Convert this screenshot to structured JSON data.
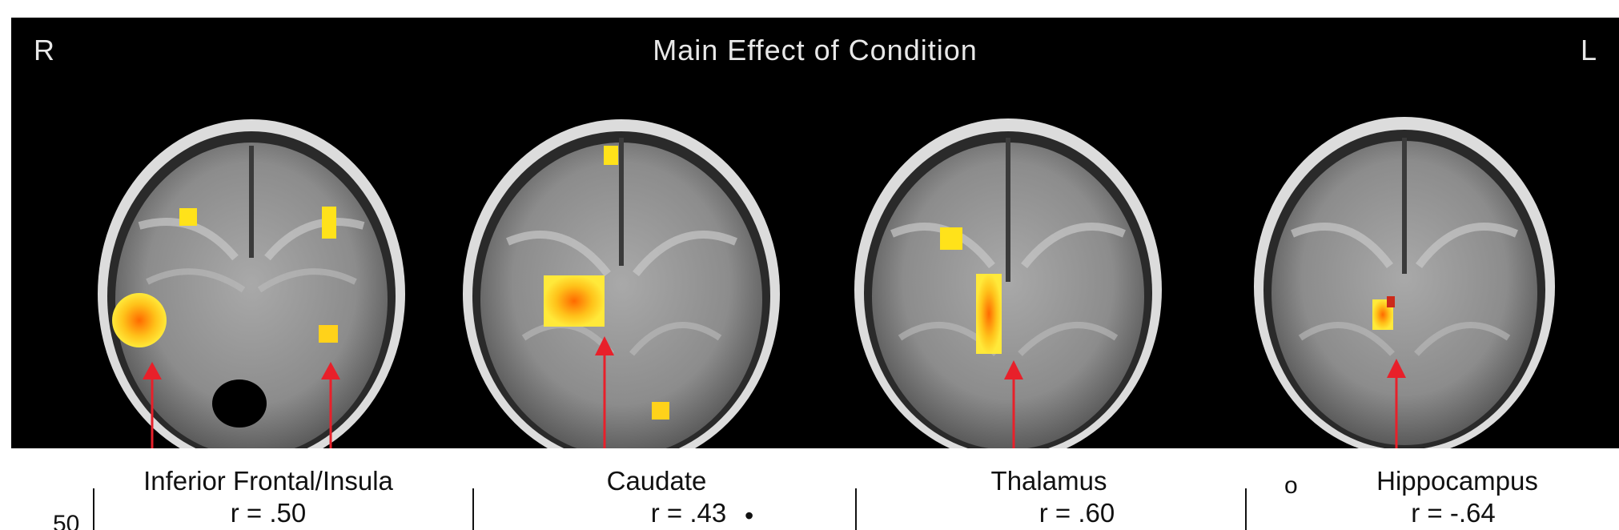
{
  "figure": {
    "title": "Main Effect of Condition",
    "side_left": "R",
    "side_right": "L",
    "regions": [
      {
        "name": "Inferior Frontal/Insula",
        "r": "r = .50"
      },
      {
        "name": "Caudate",
        "r": "r = .43"
      },
      {
        "name": "Thalamus",
        "r": "r = .60"
      },
      {
        "name": "Hippocampus",
        "r": "r = -.64"
      }
    ],
    "axis_fragment": "50",
    "marker_open": "o",
    "marker_filled": "•",
    "colors": {
      "activation_core": "#ff7a00",
      "activation_edge": "#ffe21a",
      "arrow": "#e8202a",
      "background": "#000000"
    }
  }
}
